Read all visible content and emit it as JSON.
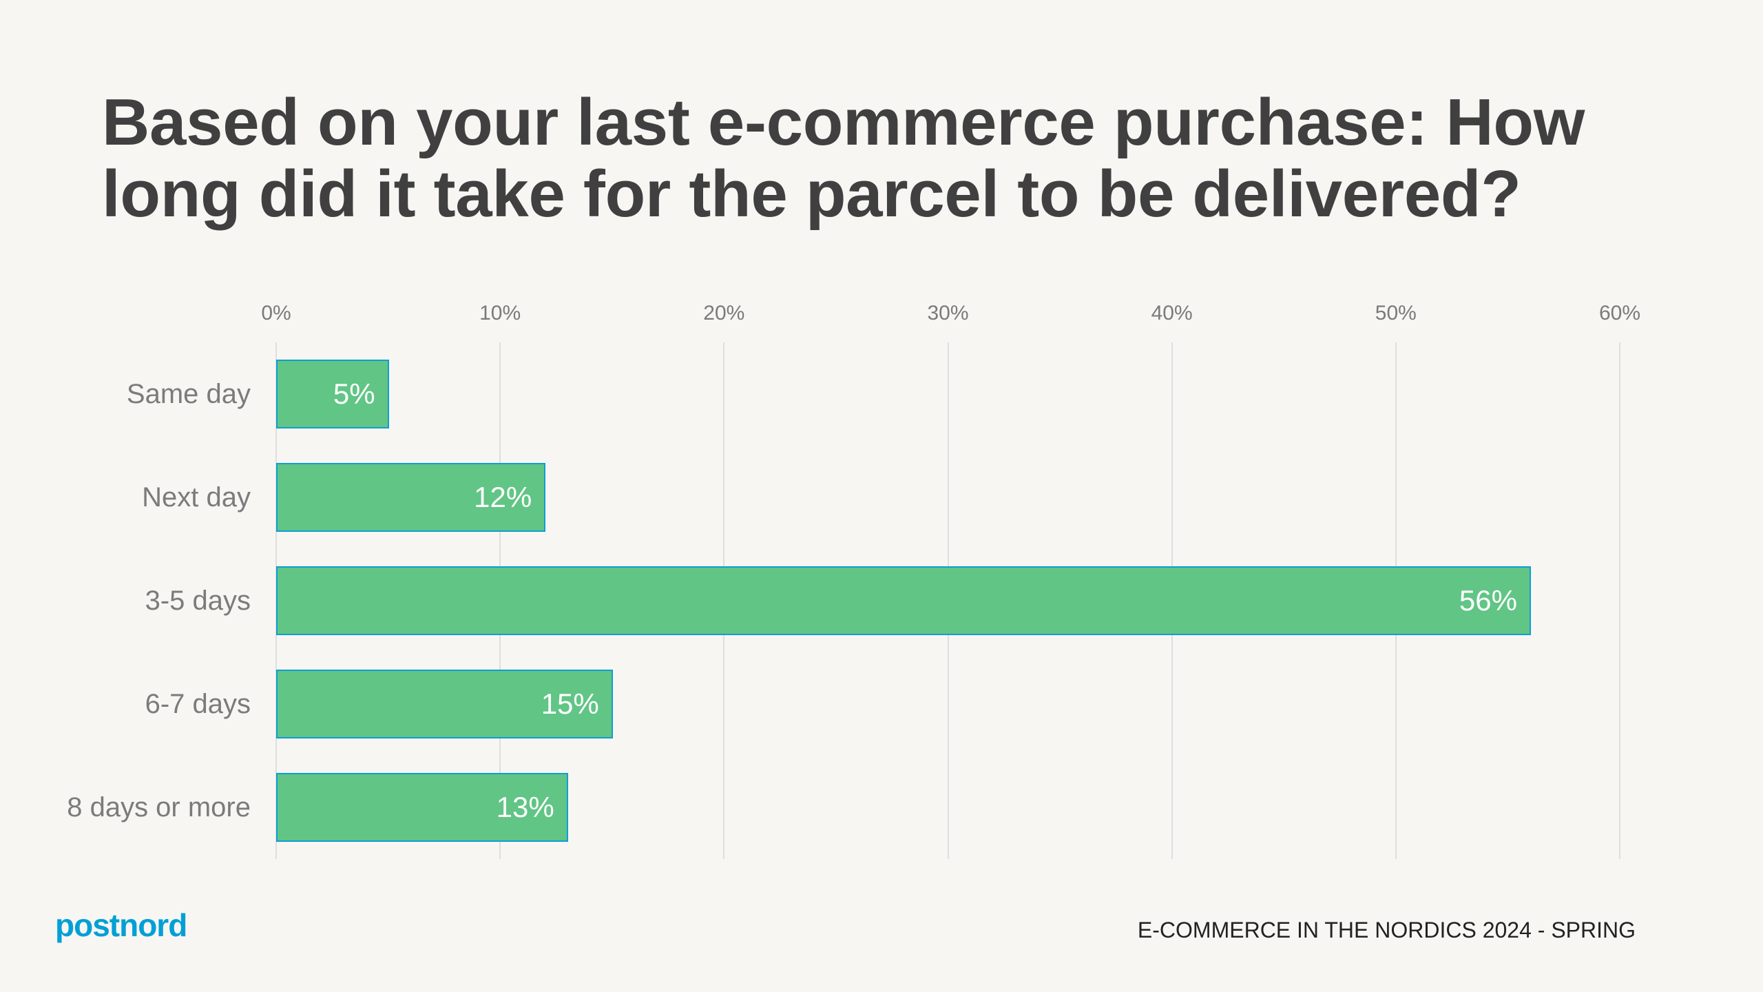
{
  "title": "Based on your last e-commerce purchase: How long did it take for the parcel to be delivered?",
  "footer": {
    "logo": "postnord",
    "source": "E-COMMERCE IN THE NORDICS 2024 - SPRING"
  },
  "colors": {
    "bar_fill": "#61C585",
    "bar_border": "#0E9ED3",
    "logo": "#00A0D6",
    "title": "#404040",
    "background": "#F7F6F3"
  },
  "chart_data": {
    "type": "bar",
    "orientation": "horizontal",
    "title": "Based on your last e-commerce purchase: How long did it take for the parcel to be delivered?",
    "categories": [
      "Same day",
      "Next day",
      "3-5 days",
      "6-7 days",
      "8 days or more"
    ],
    "values": [
      5,
      12,
      56,
      15,
      13
    ],
    "value_labels": [
      "5%",
      "12%",
      "56%",
      "15%",
      "13%"
    ],
    "xlabel": "",
    "ylabel": "",
    "xlim": [
      0,
      60
    ],
    "x_ticks": [
      "0%",
      "10%",
      "20%",
      "30%",
      "40%",
      "50%",
      "60%"
    ],
    "x_axis_position": "top",
    "grid": true,
    "legend": "none"
  }
}
